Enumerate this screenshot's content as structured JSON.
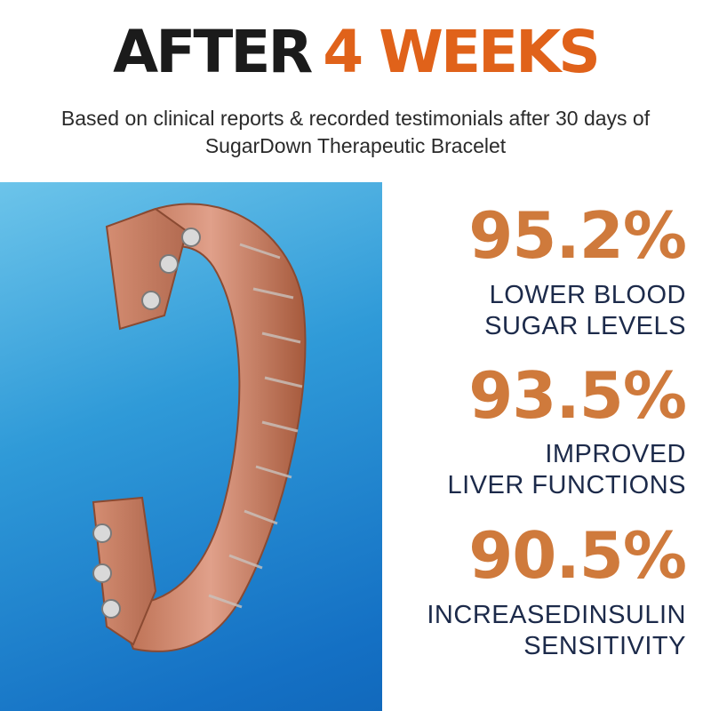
{
  "headline": {
    "part1": "AFTER",
    "part2": "4 WEEKS"
  },
  "subtitle": {
    "line1": "Based on clinical reports & recorded testimonials after 30 days of",
    "line2": "SugarDown Therapeutic Bracelet"
  },
  "stats": [
    {
      "value": "95.2%",
      "label_line1": "LOWER BLOOD",
      "label_line2": "SUGAR LEVELS"
    },
    {
      "value": "93.5%",
      "label_line1": "IMPROVED",
      "label_line2": "LIVER FUNCTIONS"
    },
    {
      "value": "90.5%",
      "label_line1": "INCREASEDINSULIN",
      "label_line2": "SENSITIVITY"
    }
  ],
  "colors": {
    "accent": "#e0621a",
    "stat_value": "#cf7a3c",
    "stat_label": "#1c2a4a",
    "headline_dark": "#1b1b1b",
    "photo_blue": "#2f9ad8"
  }
}
